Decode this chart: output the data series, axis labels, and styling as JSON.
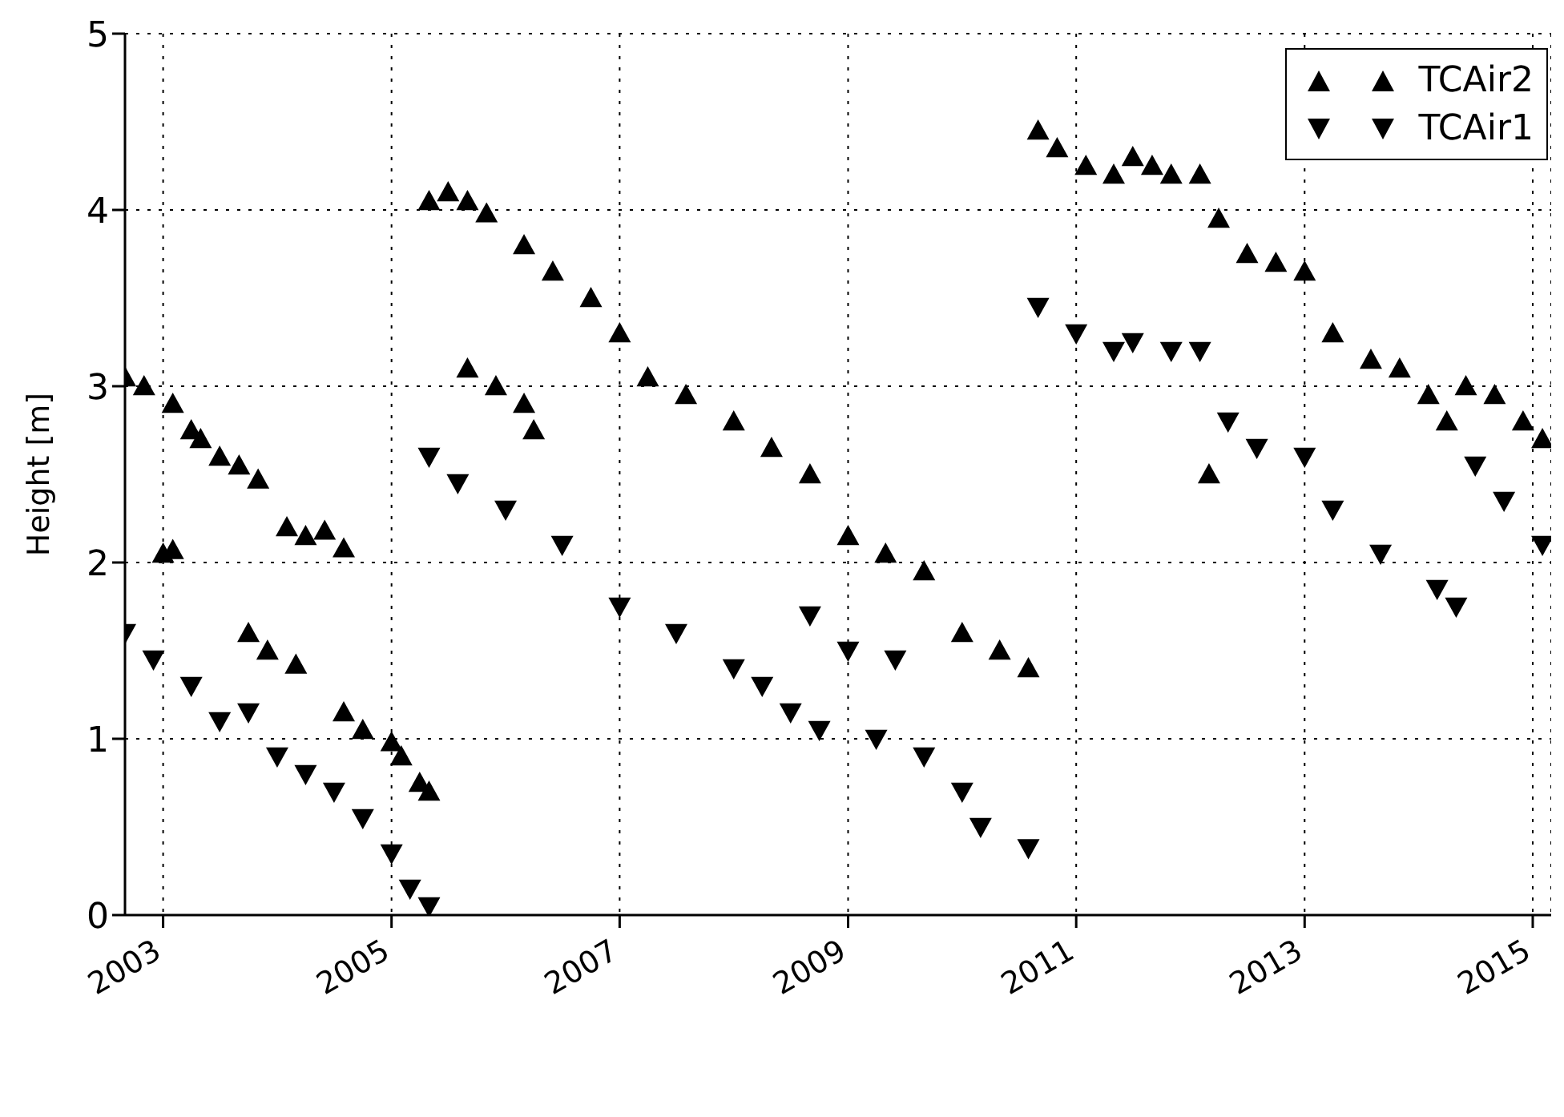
{
  "chart_data": {
    "type": "scatter",
    "ylabel": "Height [m]",
    "xlim": [
      "2002-09",
      "2015-03"
    ],
    "xticks": [
      "2003",
      "2005",
      "2007",
      "2009",
      "2011",
      "2013",
      "2015"
    ],
    "ylim": [
      0,
      5
    ],
    "yticks": [
      0,
      1,
      2,
      3,
      4,
      5
    ],
    "grid": true,
    "legend": "top right",
    "series": [
      {
        "name": "TCAir2",
        "color": "#000000",
        "marker": "triangle",
        "x": [
          "2002-09",
          "2002-11",
          "2003-02",
          "2003-04",
          "2003-05",
          "2003-07",
          "2003-09",
          "2003-11",
          "2003-01",
          "2003-02",
          "2003-10",
          "2003-12",
          "2004-03",
          "2004-02",
          "2004-04",
          "2004-06",
          "2004-08",
          "2004-08",
          "2004-10",
          "2005-01",
          "2005-02",
          "2005-04",
          "2005-05",
          "2005-05",
          "2005-07",
          "2005-09",
          "2005-11",
          "2005-09",
          "2005-12",
          "2006-03",
          "2006-04",
          "2006-03",
          "2006-06",
          "2006-10",
          "2007-01",
          "2007-04",
          "2007-08",
          "2008-01",
          "2008-05",
          "2008-09",
          "2009-01",
          "2009-05",
          "2009-09",
          "2010-01",
          "2010-05",
          "2010-08",
          "2010-09",
          "2010-11",
          "2011-02",
          "2011-05",
          "2011-07",
          "2011-09",
          "2011-11",
          "2012-02",
          "2012-03",
          "2012-04",
          "2012-07",
          "2012-10",
          "2013-01",
          "2013-04",
          "2013-08",
          "2013-11",
          "2014-02",
          "2014-04",
          "2014-06",
          "2014-09",
          "2014-12",
          "2015-02"
        ],
        "values": [
          3.05,
          3.0,
          2.9,
          2.75,
          2.7,
          2.6,
          2.55,
          2.47,
          2.05,
          2.07,
          1.6,
          1.5,
          1.42,
          2.2,
          2.15,
          2.18,
          2.08,
          1.15,
          1.05,
          0.98,
          0.9,
          0.75,
          0.7,
          4.05,
          4.1,
          4.05,
          3.98,
          3.1,
          3.0,
          2.9,
          2.75,
          3.8,
          3.65,
          3.5,
          3.3,
          3.05,
          2.95,
          2.8,
          2.65,
          2.5,
          2.15,
          2.05,
          1.95,
          1.6,
          1.5,
          1.4,
          4.45,
          4.35,
          4.25,
          4.2,
          4.3,
          4.25,
          4.2,
          4.2,
          2.5,
          3.95,
          3.75,
          3.7,
          3.65,
          3.3,
          3.15,
          3.1,
          2.95,
          2.8,
          3.0,
          2.95,
          2.8,
          2.7
        ]
      },
      {
        "name": "TCAir1",
        "color": "#000000",
        "marker": "triangle-down",
        "x": [
          "2002-09",
          "2002-12",
          "2003-04",
          "2003-07",
          "2003-10",
          "2004-01",
          "2004-04",
          "2004-07",
          "2004-10",
          "2005-01",
          "2005-03",
          "2005-05",
          "2005-05",
          "2005-08",
          "2006-01",
          "2006-07",
          "2007-01",
          "2007-07",
          "2008-01",
          "2008-04",
          "2008-07",
          "2008-10",
          "2008-09",
          "2009-01",
          "2009-06",
          "2009-04",
          "2009-09",
          "2010-01",
          "2010-03",
          "2010-08",
          "2010-09",
          "2011-01",
          "2011-05",
          "2011-07",
          "2011-11",
          "2012-02",
          "2012-05",
          "2012-08",
          "2013-01",
          "2013-04",
          "2013-09",
          "2014-03",
          "2014-05",
          "2014-07",
          "2014-10",
          "2015-02"
        ],
        "values": [
          1.6,
          1.45,
          1.3,
          1.1,
          1.15,
          0.9,
          0.8,
          0.7,
          0.55,
          0.35,
          0.15,
          0.05,
          2.6,
          2.45,
          2.3,
          2.1,
          1.75,
          1.6,
          1.4,
          1.3,
          1.15,
          1.05,
          1.7,
          1.5,
          1.45,
          1.0,
          0.9,
          0.7,
          0.5,
          0.38,
          3.45,
          3.3,
          3.2,
          3.25,
          3.2,
          3.2,
          2.8,
          2.65,
          2.6,
          2.3,
          2.05,
          1.85,
          1.75,
          2.55,
          2.35,
          2.1
        ]
      }
    ]
  }
}
